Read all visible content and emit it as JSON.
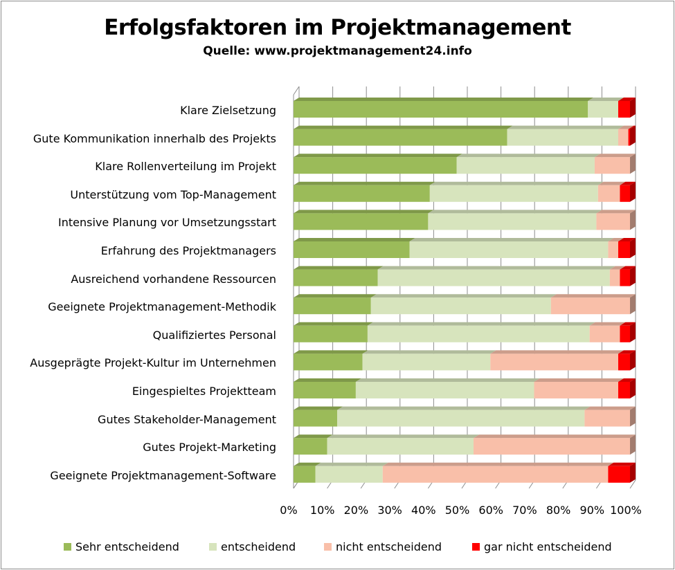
{
  "chart_data": {
    "type": "bar",
    "orientation": "horizontal",
    "stacked": "percent",
    "title": "Erfolgsfaktoren im Projektmanagement",
    "subtitle": "Quelle: www.projektmanagement24.info",
    "categories": [
      "Klare Zielsetzung",
      "Gute Kommunikation innerhalb des Projekts",
      "Klare Rollenverteilung im Projekt",
      "Unterstützung vom Top-Management",
      "Intensive Planung vor Umsetzungsstart",
      "Erfahrung des Projektmanagers",
      "Ausreichend vorhandene Ressourcen",
      "Geeignete Projektmanagement-Methodik",
      "Qualifiziertes Personal",
      "Ausgeprägte Projekt-Kultur im Unternehmen",
      "Eingespieltes Projektteam",
      "Gutes Stakeholder-Management",
      "Gutes Projekt-Marketing",
      "Geeignete Projektmanagement-Software"
    ],
    "series": [
      {
        "name": "Sehr entscheidend",
        "color": "#9bbb59",
        "values": [
          87.5,
          63.5,
          48.5,
          40.5,
          40.0,
          34.5,
          25.0,
          23.0,
          22.0,
          20.5,
          18.5,
          13.0,
          10.0,
          6.5
        ]
      },
      {
        "name": "entscheidend",
        "color": "#d7e4bd",
        "values": [
          9.0,
          33.0,
          41.0,
          50.0,
          50.0,
          59.0,
          69.0,
          53.5,
          66.0,
          38.0,
          53.0,
          73.5,
          43.5,
          20.0
        ]
      },
      {
        "name": "nicht entscheidend",
        "color": "#f9bfa9",
        "values": [
          0.0,
          3.0,
          10.5,
          6.5,
          10.0,
          3.0,
          3.0,
          23.5,
          9.0,
          38.0,
          25.0,
          13.5,
          46.5,
          67.0
        ]
      },
      {
        "name": "gar nicht entscheidend",
        "color": "#ff0000",
        "values": [
          3.5,
          0.5,
          0.0,
          3.0,
          0.0,
          3.5,
          3.0,
          0.0,
          3.0,
          3.5,
          3.5,
          0.0,
          0.0,
          6.5
        ]
      }
    ],
    "x_ticks": [
      "0%",
      "10%",
      "20%",
      "30%",
      "40%",
      "50%",
      "60%",
      "70%",
      "80%",
      "90%",
      "100%"
    ],
    "xlim": [
      0,
      100
    ],
    "grid": true,
    "legend_position": "bottom"
  }
}
